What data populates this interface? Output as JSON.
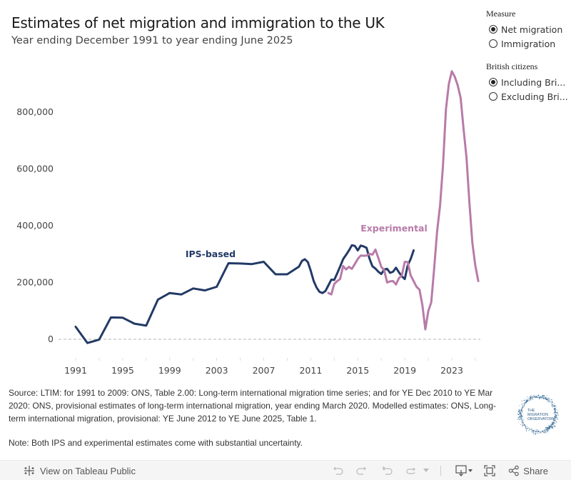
{
  "header": {
    "title": "Estimates of net migration and immigration to the UK",
    "subtitle": "Year ending December 1991 to year ending June 2025"
  },
  "filters": {
    "measure": {
      "title": "Measure",
      "options": [
        {
          "label": "Net migration",
          "selected": true
        },
        {
          "label": "Immigration",
          "selected": false
        }
      ]
    },
    "british_citizens": {
      "title": "British citizens",
      "options": [
        {
          "label": "Including Bri...",
          "selected": true
        },
        {
          "label": "Excluding Bri...",
          "selected": false
        }
      ]
    }
  },
  "chart_data": {
    "type": "line",
    "title": "Estimates of net migration and immigration to the UK",
    "subtitle": "Year ending December 1991 to year ending June 2025",
    "xlabel": "",
    "ylabel": "",
    "xlim": [
      1990.5,
      2025.8
    ],
    "ylim": [
      -50000,
      1000000
    ],
    "y_ticks": [
      0,
      200000,
      400000,
      600000,
      800000
    ],
    "y_tick_labels": [
      "0",
      "200,000",
      "400,000",
      "600,000",
      "800,000"
    ],
    "x_ticks": [
      1991,
      1995,
      1999,
      2003,
      2007,
      2011,
      2015,
      2019,
      2023
    ],
    "x_tick_labels": [
      "1991",
      "1995",
      "1999",
      "2003",
      "2007",
      "2011",
      "2015",
      "2019",
      "2023"
    ],
    "grid": false,
    "zero_line": "dashed",
    "legend": "inline-labels",
    "series": [
      {
        "name": "IPS-based",
        "color": "#233a66",
        "x": [
          1991,
          1992,
          1993,
          1994,
          1995,
          1996,
          1997,
          1998,
          1999,
          2000,
          2001,
          2002,
          2003,
          2004,
          2005,
          2006,
          2007,
          2008,
          2009,
          2010,
          2010.25,
          2010.5,
          2010.75,
          2011,
          2011.25,
          2011.5,
          2011.75,
          2012,
          2012.25,
          2012.5,
          2012.75,
          2013,
          2013.25,
          2013.5,
          2013.75,
          2014,
          2014.25,
          2014.5,
          2014.75,
          2015,
          2015.25,
          2015.5,
          2015.75,
          2016,
          2016.25,
          2016.5,
          2016.75,
          2017,
          2017.25,
          2017.5,
          2017.75,
          2018,
          2018.25,
          2018.5,
          2018.75,
          2019,
          2019.25,
          2019.5,
          2019.75
        ],
        "values": [
          44000,
          -13000,
          -1000,
          77000,
          76000,
          55000,
          48000,
          140000,
          163000,
          158000,
          179000,
          172000,
          185000,
          268000,
          267000,
          265000,
          273000,
          229000,
          229000,
          256000,
          276000,
          282000,
          272000,
          241000,
          205000,
          182000,
          167000,
          163000,
          170000,
          190000,
          210000,
          209000,
          232000,
          256000,
          282000,
          297000,
          313000,
          331000,
          329000,
          313000,
          330000,
          327000,
          322000,
          284000,
          257000,
          249000,
          238000,
          230000,
          246000,
          248000,
          234000,
          238000,
          252000,
          236000,
          222000,
          212000,
          260000,
          283000,
          313000
        ]
      },
      {
        "name": "Experimental",
        "color": "#b87ba8",
        "x": [
          2012.5,
          2012.75,
          2013,
          2013.25,
          2013.5,
          2013.75,
          2014,
          2014.25,
          2014.5,
          2014.75,
          2015,
          2015.25,
          2015.5,
          2015.75,
          2016,
          2016.25,
          2016.5,
          2016.75,
          2017,
          2017.25,
          2017.5,
          2017.75,
          2018,
          2018.25,
          2018.5,
          2018.75,
          2019,
          2019.25,
          2019.5,
          2019.75,
          2020,
          2020.25,
          2020.5,
          2020.75,
          2021,
          2021.25,
          2021.5,
          2021.75,
          2022,
          2022.25,
          2022.5,
          2022.75,
          2023,
          2023.25,
          2023.5,
          2023.75,
          2024,
          2024.25,
          2024.5,
          2024.75,
          2025,
          2025.25
        ],
        "values": [
          163000,
          158000,
          195000,
          205000,
          212000,
          258000,
          246000,
          255000,
          248000,
          265000,
          283000,
          295000,
          294000,
          295000,
          301000,
          298000,
          316000,
          286000,
          255000,
          243000,
          200000,
          204000,
          205000,
          193000,
          215000,
          225000,
          273000,
          272000,
          225000,
          205000,
          185000,
          175000,
          120000,
          35000,
          100000,
          130000,
          250000,
          380000,
          470000,
          610000,
          810000,
          900000,
          944000,
          925000,
          895000,
          850000,
          740000,
          640000,
          480000,
          340000,
          260000,
          205000
        ]
      }
    ],
    "annotations": [
      {
        "text": "IPS-based",
        "series": "IPS-based"
      },
      {
        "text": "Experimental",
        "series": "Experimental"
      }
    ]
  },
  "footer": {
    "source_text": "Source: LTIM: for 1991 to 2009: ONS, Table 2.00: Long-term international migration time series; and for YE Dec 2010 to YE Mar 2020: ONS, provisional estimates of long-term international migration, year ending March 2020. Modelled estimates: ONS, Long-term international migration, provisional: YE June 2012 to YE June 2025, Table 1.",
    "note_text": "Note: Both IPS and experimental estimates come with substantial uncertainty.",
    "logo_lines": [
      "THE",
      "MIGRATION",
      "OBSERVATORY"
    ]
  },
  "toolbar": {
    "view_label": "View on Tableau Public",
    "share_label": "Share",
    "icons": [
      "tableau-icon",
      "undo-icon",
      "redo-icon",
      "revert-icon",
      "refresh-icon",
      "download-icon",
      "fullscreen-icon",
      "share-icon"
    ]
  }
}
